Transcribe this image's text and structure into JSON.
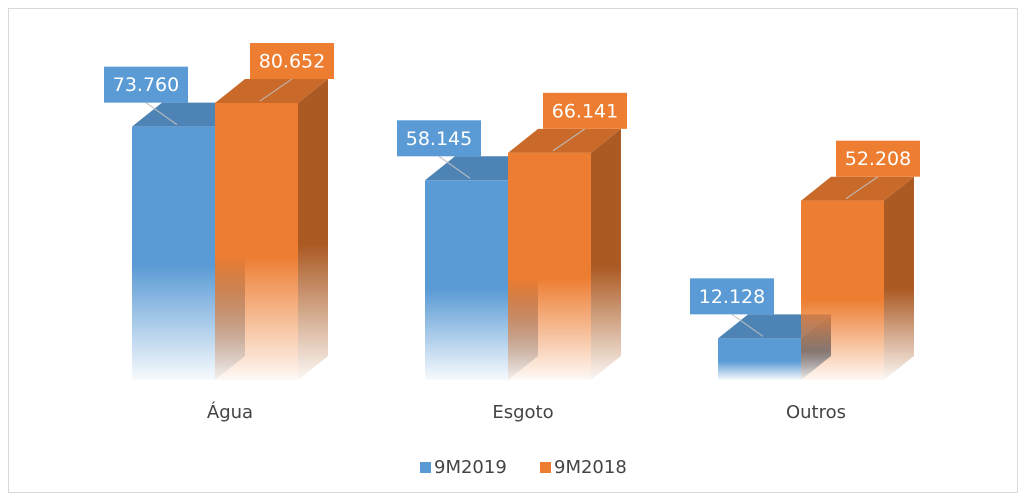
{
  "chart_data": {
    "type": "bar3d",
    "categories": [
      "Água",
      "Esgoto",
      "Outros"
    ],
    "series": [
      {
        "name": "9M2019",
        "color": "#5b9bd5",
        "values": [
          73760,
          58145,
          12128
        ],
        "value_labels": [
          "73.760",
          "58.145",
          "12.128"
        ]
      },
      {
        "name": "9M2018",
        "color": "#ed7d31",
        "values": [
          80652,
          66141,
          52208
        ],
        "value_labels": [
          "80.652",
          "66.141",
          "52.208"
        ]
      }
    ],
    "legend": "bottom"
  }
}
